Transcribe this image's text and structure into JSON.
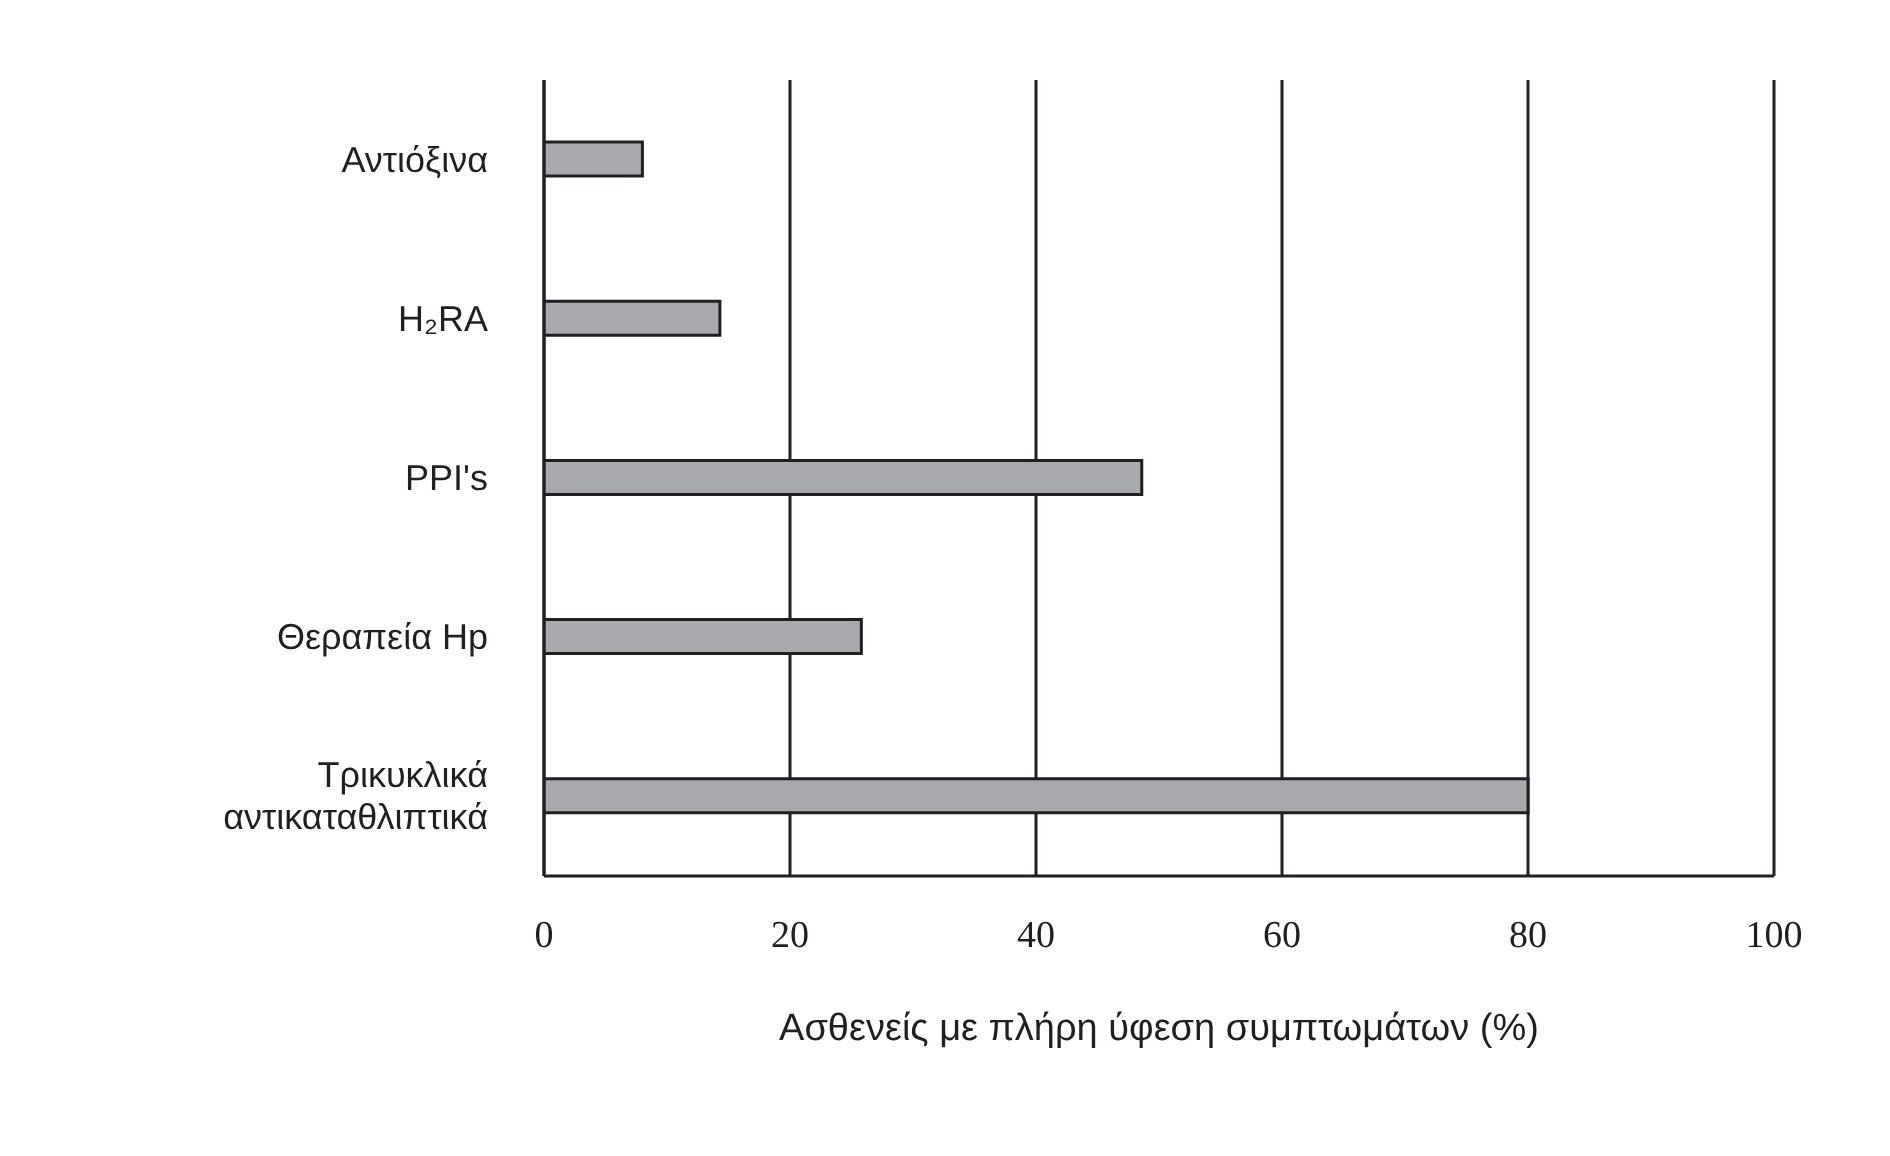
{
  "chart_data": {
    "type": "bar",
    "orientation": "horizontal",
    "xlabel": "Ασθενείς με πλήρη ύφεση συμπτωμάτων (%)",
    "categories": [
      "Αντιόξινα",
      "H₂RA",
      "PPI's",
      "Θεραπεία Hp",
      "Τρικυκλικά αντικαταθλιπτικά"
    ],
    "values": [
      8,
      14.3,
      48.6,
      25.8,
      80
    ],
    "color": "#a7a9ac",
    "xlim": [
      0,
      100
    ],
    "xticks": [
      0,
      20,
      40,
      60,
      80,
      100
    ],
    "grid": "x"
  }
}
